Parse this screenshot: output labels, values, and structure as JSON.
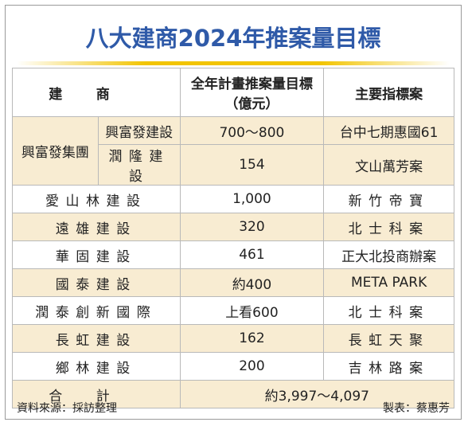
{
  "header": {
    "title": "八大建商2024年推案量目標"
  },
  "table": {
    "columns": {
      "company": "建商",
      "target_line1": "全年計畫推案量目標",
      "target_line2": "（億元）",
      "project": "主要指標案"
    },
    "group": {
      "name": "興富發集團",
      "rows": [
        {
          "company": "興富發建設",
          "target": "700～800",
          "project": "台中七期惠國61"
        },
        {
          "company": "潤隆建設",
          "target": "154",
          "project": "文山萬芳案"
        }
      ]
    },
    "rows": [
      {
        "company": "愛山林建設",
        "target": "1,000",
        "project": "新竹帝寶"
      },
      {
        "company": "遠雄建設",
        "target": "320",
        "project": "北士科案"
      },
      {
        "company": "華固建設",
        "target": "461",
        "project": "正大北投商辦案"
      },
      {
        "company": "國泰建設",
        "target": "約400",
        "project": "META PARK"
      },
      {
        "company": "潤泰創新國際",
        "target": "上看600",
        "project": "北士科案"
      },
      {
        "company": "長虹建設",
        "target": "162",
        "project": "長虹天聚"
      },
      {
        "company": "鄉林建設",
        "target": "200",
        "project": "吉林路案"
      }
    ],
    "total": {
      "label": "合計",
      "value": "約3,997～4,097"
    }
  },
  "footer": {
    "source": "資料來源：採訪整理",
    "author": "製表：蔡惠芳"
  }
}
